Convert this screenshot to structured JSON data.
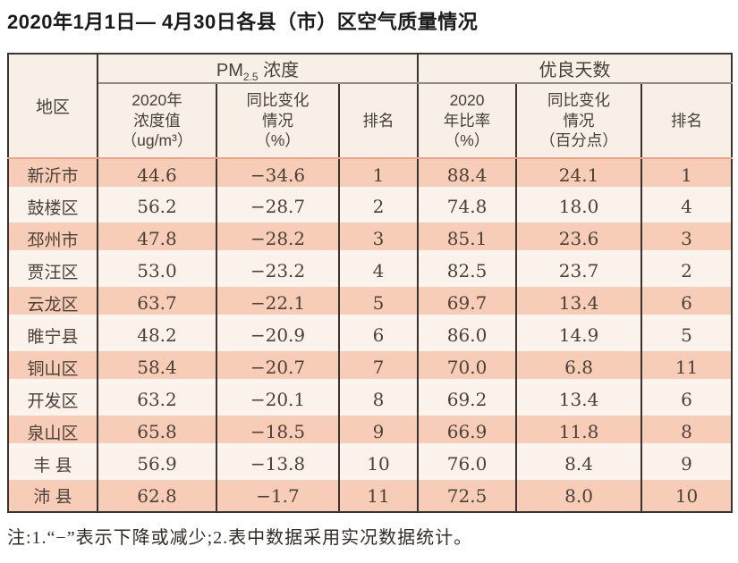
{
  "page": {
    "title": "2020年1月1日— 4月30日各县（市）区空气质量情况",
    "note": "注:1.“−”表示下降或减少;2.表中数据采用实况数据统计。"
  },
  "table": {
    "region_header": "地区",
    "pm_group": {
      "prefix": "PM",
      "sub": "2.5",
      "suffix": " 浓度"
    },
    "good_days_header": "优良天数",
    "sub_headers": [
      "2020年\n浓度值\n（ug/m³）",
      "同比变化\n情况\n（%）",
      "排名",
      "2020\n年比率\n（%）",
      "同比变化\n情况\n（百分点）",
      "排名"
    ],
    "rows": [
      {
        "region": "新沂市",
        "values": [
          "44.6",
          "−34.6",
          "1",
          "88.4",
          "24.1",
          "1"
        ]
      },
      {
        "region": "鼓楼区",
        "values": [
          "56.2",
          "−28.7",
          "2",
          "74.8",
          "18.0",
          "4"
        ]
      },
      {
        "region": "邳州市",
        "values": [
          "47.8",
          "−28.2",
          "3",
          "85.1",
          "23.6",
          "3"
        ]
      },
      {
        "region": "贾汪区",
        "values": [
          "53.0",
          "−23.2",
          "4",
          "82.5",
          "23.7",
          "2"
        ]
      },
      {
        "region": "云龙区",
        "values": [
          "63.7",
          "−22.1",
          "5",
          "69.7",
          "13.4",
          "6"
        ]
      },
      {
        "region": "睢宁县",
        "values": [
          "48.2",
          "−20.9",
          "6",
          "86.0",
          "14.9",
          "5"
        ]
      },
      {
        "region": "铜山区",
        "values": [
          "58.4",
          "−20.7",
          "7",
          "70.0",
          "6.8",
          "11"
        ]
      },
      {
        "region": "开发区",
        "values": [
          "63.2",
          "−20.1",
          "8",
          "69.2",
          "13.4",
          "6"
        ]
      },
      {
        "region": "泉山区",
        "values": [
          "65.8",
          "−18.5",
          "9",
          "66.9",
          "11.8",
          "8"
        ]
      },
      {
        "region": "丰 县",
        "values": [
          "56.9",
          "−13.8",
          "10",
          "76.0",
          "8.4",
          "9"
        ]
      },
      {
        "region": "沛 县",
        "values": [
          "62.8",
          "−1.7",
          "11",
          "72.5",
          "8.0",
          "10"
        ]
      }
    ]
  },
  "chart_data": {
    "type": "table",
    "title": "2020年1月1日— 4月30日各县（市）区空气质量情况",
    "column_groups": [
      "地区",
      "PM2.5浓度",
      "优良天数"
    ],
    "columns": [
      "地区",
      "PM2.5浓度 2020年浓度值（ug/m³）",
      "PM2.5浓度 同比变化情况（%）",
      "PM2.5浓度 排名",
      "优良天数 2020年比率（%）",
      "优良天数 同比变化情况（百分点）",
      "优良天数 排名"
    ],
    "rows": [
      [
        "新沂市",
        44.6,
        -34.6,
        1,
        88.4,
        24.1,
        1
      ],
      [
        "鼓楼区",
        56.2,
        -28.7,
        2,
        74.8,
        18.0,
        4
      ],
      [
        "邳州市",
        47.8,
        -28.2,
        3,
        85.1,
        23.6,
        3
      ],
      [
        "贾汪区",
        53.0,
        -23.2,
        4,
        82.5,
        23.7,
        2
      ],
      [
        "云龙区",
        63.7,
        -22.1,
        5,
        69.7,
        13.4,
        6
      ],
      [
        "睢宁县",
        48.2,
        -20.9,
        6,
        86.0,
        14.9,
        5
      ],
      [
        "铜山区",
        58.4,
        -20.7,
        7,
        70.0,
        6.8,
        11
      ],
      [
        "开发区",
        63.2,
        -20.1,
        8,
        69.2,
        13.4,
        6
      ],
      [
        "泉山区",
        65.8,
        -18.5,
        9,
        66.9,
        11.8,
        8
      ],
      [
        "丰县",
        56.9,
        -13.8,
        10,
        76.0,
        8.4,
        9
      ],
      [
        "沛县",
        62.8,
        -1.7,
        11,
        72.5,
        8.0,
        10
      ]
    ],
    "note": "注:1.“−”表示下降或减少;2.表中数据采用实况数据统计。"
  },
  "colors": {
    "row_salmon": "#f8cdb7",
    "row_light": "#fcf2ec",
    "row_separator": "#fcf5ef",
    "header_bg": "#f8f0e6",
    "border_dark": "#3a3330",
    "header_divider": "#908b85",
    "header_data_divider": "#eda58a"
  }
}
